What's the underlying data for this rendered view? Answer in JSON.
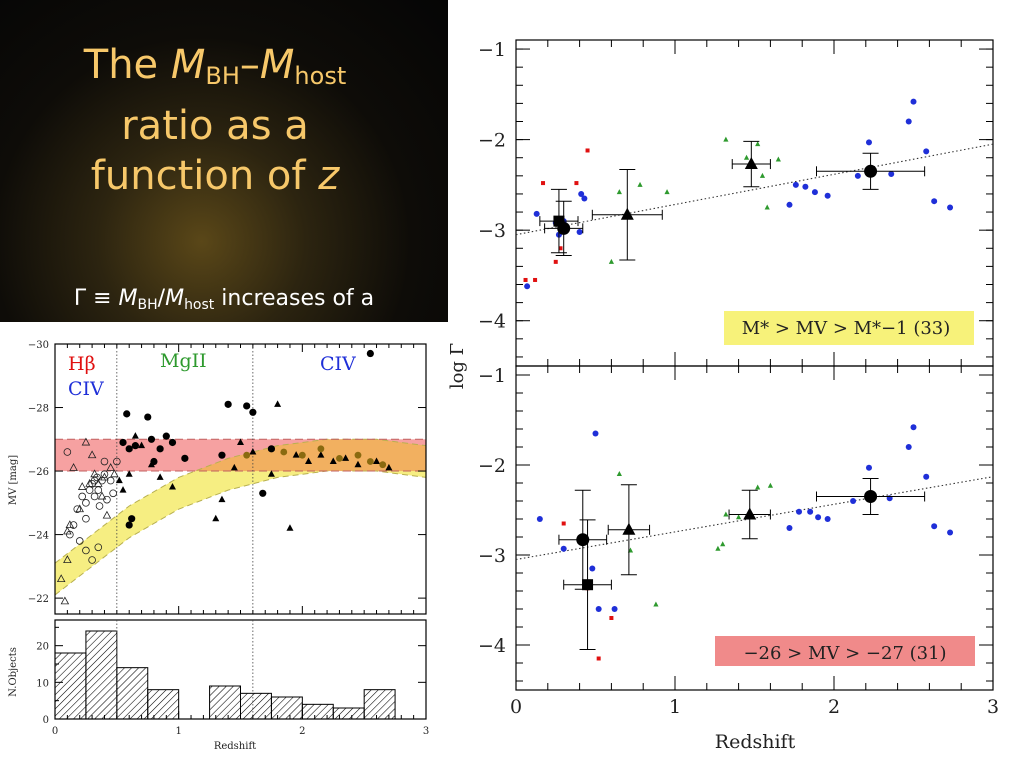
{
  "title_panel": {
    "title_line1_prefix": "The ",
    "title_m1": "M",
    "title_sub1": "BH",
    "title_dash": "–",
    "title_m2": "M",
    "title_sub2": "host",
    "title_line2": "ratio as a",
    "title_line3_prefix": "function of ",
    "title_z": "z",
    "sub_gamma": "Γ ≡ ",
    "sub_m1": "M",
    "sub_bh": "BH",
    "sub_slash": "/",
    "sub_m2": "M",
    "sub_host": "host",
    "sub_rest": " increases of a"
  },
  "colors": {
    "blue": "#1f2fd8",
    "green": "#2e9a2e",
    "red": "#e01010",
    "black": "#000000",
    "yellow_band": "#f6ee82",
    "red_band": "#f49090",
    "orange_overlap": "#f2b060",
    "label_yellow_bg": "#f7f27a",
    "label_red_bg": "#f08a8a"
  },
  "chart_data": [
    {
      "type": "scatter",
      "name": "top-right",
      "ylabel": "log Γ",
      "xlim": [
        0,
        3
      ],
      "ylim": [
        -4.5,
        -0.9
      ],
      "yticks": [
        "−1",
        "−2",
        "−3",
        "−4"
      ],
      "yticks_values": [
        -1,
        -2,
        -3,
        -4
      ],
      "box_label": "M* > MV > M*−1 (33)",
      "fit_line": [
        [
          0,
          -3.05
        ],
        [
          3,
          -2.05
        ]
      ],
      "points_blue": [
        [
          0.07,
          -3.62
        ],
        [
          0.13,
          -2.82
        ],
        [
          0.25,
          -2.92
        ],
        [
          0.27,
          -3.05
        ],
        [
          0.3,
          -2.9
        ],
        [
          0.4,
          -3.02
        ],
        [
          0.41,
          -2.6
        ],
        [
          0.43,
          -2.65
        ],
        [
          1.72,
          -2.72
        ],
        [
          1.76,
          -2.5
        ],
        [
          1.82,
          -2.52
        ],
        [
          1.88,
          -2.58
        ],
        [
          1.96,
          -2.62
        ],
        [
          2.15,
          -2.4
        ],
        [
          2.22,
          -2.03
        ],
        [
          2.36,
          -2.38
        ],
        [
          2.47,
          -1.8
        ],
        [
          2.5,
          -1.58
        ],
        [
          2.58,
          -2.13
        ],
        [
          2.63,
          -2.68
        ],
        [
          2.73,
          -2.75
        ]
      ],
      "points_green": [
        [
          0.6,
          -3.35
        ],
        [
          0.65,
          -2.58
        ],
        [
          0.78,
          -2.5
        ],
        [
          0.95,
          -2.58
        ],
        [
          1.32,
          -2.0
        ],
        [
          1.45,
          -2.2
        ],
        [
          1.52,
          -2.05
        ],
        [
          1.55,
          -2.4
        ],
        [
          1.58,
          -2.75
        ],
        [
          1.65,
          -2.22
        ]
      ],
      "points_red": [
        [
          0.06,
          -3.55
        ],
        [
          0.12,
          -3.55
        ],
        [
          0.17,
          -2.48
        ],
        [
          0.25,
          -3.35
        ],
        [
          0.28,
          -3.2
        ],
        [
          0.38,
          -2.48
        ],
        [
          0.45,
          -2.12
        ]
      ],
      "binned": [
        {
          "marker": "square",
          "x": 0.27,
          "y": -2.9,
          "xerr": 0.12,
          "yerr": 0.35
        },
        {
          "marker": "circle",
          "x": 0.3,
          "y": -2.98,
          "xerr": 0.12,
          "yerr": 0.3
        },
        {
          "marker": "triangle",
          "x": 0.7,
          "y": -2.83,
          "xerr": 0.22,
          "yerr": 0.5
        },
        {
          "marker": "triangle",
          "x": 1.48,
          "y": -2.27,
          "xerr": 0.12,
          "yerr": 0.25
        },
        {
          "marker": "circle",
          "x": 2.23,
          "y": -2.35,
          "xerr": 0.34,
          "yerr": 0.2
        }
      ]
    },
    {
      "type": "scatter",
      "name": "bottom-right",
      "xlabel": "Redshift",
      "xlim": [
        0,
        3
      ],
      "ylim": [
        -4.5,
        -0.9
      ],
      "xticks": [
        "0",
        "1",
        "2",
        "3"
      ],
      "xticks_values": [
        0,
        1,
        2,
        3
      ],
      "yticks": [
        "−1",
        "−2",
        "−3",
        "−4"
      ],
      "yticks_values": [
        -1,
        -2,
        -3,
        -4
      ],
      "box_label": "−26 > MV > −27 (31)",
      "fit_line": [
        [
          0,
          -3.05
        ],
        [
          3,
          -2.13
        ]
      ],
      "points_blue": [
        [
          0.15,
          -2.6
        ],
        [
          0.3,
          -2.93
        ],
        [
          0.48,
          -3.15
        ],
        [
          0.5,
          -1.65
        ],
        [
          0.52,
          -3.6
        ],
        [
          0.62,
          -3.6
        ],
        [
          1.72,
          -2.7
        ],
        [
          1.78,
          -2.52
        ],
        [
          1.85,
          -2.52
        ],
        [
          1.9,
          -2.58
        ],
        [
          1.96,
          -2.6
        ],
        [
          2.12,
          -2.4
        ],
        [
          2.22,
          -2.03
        ],
        [
          2.35,
          -2.37
        ],
        [
          2.47,
          -1.8
        ],
        [
          2.5,
          -1.58
        ],
        [
          2.58,
          -2.13
        ],
        [
          2.63,
          -2.68
        ],
        [
          2.73,
          -2.75
        ]
      ],
      "points_green": [
        [
          0.65,
          -2.1
        ],
        [
          0.72,
          -2.95
        ],
        [
          0.88,
          -3.55
        ],
        [
          1.27,
          -2.93
        ],
        [
          1.3,
          -2.88
        ],
        [
          1.32,
          -2.55
        ],
        [
          1.4,
          -2.58
        ],
        [
          1.52,
          -2.25
        ],
        [
          1.6,
          -2.23
        ]
      ],
      "points_red": [
        [
          0.3,
          -2.65
        ],
        [
          0.45,
          -3.37
        ],
        [
          0.52,
          -4.15
        ],
        [
          0.6,
          -3.7
        ]
      ],
      "binned": [
        {
          "marker": "circle",
          "x": 0.42,
          "y": -2.83,
          "xerr": 0.15,
          "yerr": 0.55
        },
        {
          "marker": "square",
          "x": 0.45,
          "y": -3.33,
          "xerr": 0.15,
          "yerr": 0.72
        },
        {
          "marker": "triangle",
          "x": 0.71,
          "y": -2.72,
          "xerr": 0.13,
          "yerr": 0.5
        },
        {
          "marker": "triangle",
          "x": 1.47,
          "y": -2.55,
          "xerr": 0.13,
          "yerr": 0.27
        },
        {
          "marker": "circle",
          "x": 2.23,
          "y": -2.35,
          "xerr": 0.34,
          "yerr": 0.2
        }
      ]
    },
    {
      "type": "scatter",
      "name": "left-magnitude",
      "ylabel": "MV [mag]",
      "xlim": [
        0,
        3
      ],
      "ylim": [
        -21.5,
        -30
      ],
      "yticks": [
        "−30",
        "−28",
        "−26",
        "−24",
        "−22"
      ],
      "yticks_values": [
        -30,
        -28,
        -26,
        -24,
        -22
      ],
      "region_labels": [
        "Hβ",
        "CIV",
        "MgII",
        "CIV"
      ],
      "region_boundaries": [
        0.5,
        1.6
      ],
      "red_band": [
        -26,
        -27
      ],
      "yellow_band_upper": [
        [
          0,
          -23.1
        ],
        [
          0.3,
          -24.0
        ],
        [
          0.6,
          -24.9
        ],
        [
          1.0,
          -25.8
        ],
        [
          1.4,
          -26.4
        ],
        [
          1.8,
          -26.8
        ],
        [
          2.2,
          -27.0
        ],
        [
          2.6,
          -27.0
        ],
        [
          3.0,
          -26.8
        ]
      ],
      "yellow_band_lower": [
        [
          0,
          -22.1
        ],
        [
          0.3,
          -23.0
        ],
        [
          0.6,
          -23.9
        ],
        [
          1.0,
          -24.8
        ],
        [
          1.4,
          -25.4
        ],
        [
          1.8,
          -25.8
        ],
        [
          2.2,
          -26.0
        ],
        [
          2.6,
          -26.0
        ],
        [
          3.0,
          -25.8
        ]
      ],
      "open_circles": [
        [
          0.1,
          -26.6
        ],
        [
          0.12,
          -24.0
        ],
        [
          0.15,
          -24.3
        ],
        [
          0.18,
          -24.8
        ],
        [
          0.22,
          -25.2
        ],
        [
          0.25,
          -25.0
        ],
        [
          0.25,
          -24.5
        ],
        [
          0.28,
          -25.4
        ],
        [
          0.3,
          -25.6
        ],
        [
          0.32,
          -25.7
        ],
        [
          0.32,
          -25.2
        ],
        [
          0.34,
          -25.8
        ],
        [
          0.35,
          -25.4
        ],
        [
          0.36,
          -24.9
        ],
        [
          0.38,
          -25.7
        ],
        [
          0.4,
          -26.3
        ],
        [
          0.4,
          -25.9
        ],
        [
          0.42,
          -25.1
        ],
        [
          0.45,
          -25.7
        ],
        [
          0.47,
          -25.3
        ],
        [
          0.5,
          -26.3
        ],
        [
          0.2,
          -23.8
        ],
        [
          0.25,
          -23.5
        ],
        [
          0.3,
          -23.2
        ],
        [
          0.35,
          -23.6
        ]
      ],
      "open_triangles": [
        [
          0.05,
          -22.6
        ],
        [
          0.08,
          -21.9
        ],
        [
          0.1,
          -23.2
        ],
        [
          0.1,
          -24.1
        ],
        [
          0.12,
          -24.3
        ],
        [
          0.15,
          -26.1
        ],
        [
          0.2,
          -24.8
        ],
        [
          0.22,
          -25.5
        ],
        [
          0.25,
          -26.9
        ],
        [
          0.28,
          -25.6
        ],
        [
          0.3,
          -26.5
        ],
        [
          0.32,
          -25.9
        ],
        [
          0.35,
          -25.6
        ],
        [
          0.38,
          -25.2
        ],
        [
          0.4,
          -25.8
        ],
        [
          0.42,
          -24.6
        ],
        [
          0.45,
          -26.1
        ],
        [
          0.48,
          -25.9
        ]
      ],
      "filled_circles": [
        [
          0.55,
          -26.9
        ],
        [
          0.58,
          -27.8
        ],
        [
          0.6,
          -26.7
        ],
        [
          0.62,
          -24.5
        ],
        [
          0.65,
          -26.8
        ],
        [
          0.75,
          -27.7
        ],
        [
          0.78,
          -27.0
        ],
        [
          0.8,
          -26.3
        ],
        [
          0.85,
          -26.7
        ],
        [
          0.9,
          -27.1
        ],
        [
          0.95,
          -26.9
        ],
        [
          1.05,
          -26.4
        ],
        [
          1.4,
          -28.1
        ],
        [
          1.55,
          -28.05
        ],
        [
          1.6,
          -27.85
        ],
        [
          1.68,
          -25.3
        ],
        [
          1.75,
          -26.7
        ],
        [
          2.55,
          -29.7
        ],
        [
          0.6,
          -24.3
        ],
        [
          1.35,
          -26.5
        ]
      ],
      "filled_triangles": [
        [
          0.52,
          -25.7
        ],
        [
          0.55,
          -25.4
        ],
        [
          0.6,
          -25.9
        ],
        [
          0.65,
          -27.1
        ],
        [
          0.7,
          -26.8
        ],
        [
          0.78,
          -26.2
        ],
        [
          0.85,
          -25.8
        ],
        [
          0.95,
          -25.5
        ],
        [
          1.3,
          -24.5
        ],
        [
          1.35,
          -25.1
        ],
        [
          1.45,
          -26.1
        ],
        [
          1.5,
          -26.9
        ],
        [
          1.6,
          -26.6
        ],
        [
          1.75,
          -25.9
        ],
        [
          1.8,
          -28.1
        ],
        [
          1.9,
          -24.2
        ],
        [
          1.95,
          -26.5
        ],
        [
          2.05,
          -26.3
        ],
        [
          2.15,
          -26.5
        ],
        [
          2.25,
          -26.3
        ],
        [
          2.35,
          -26.4
        ],
        [
          2.45,
          -26.2
        ],
        [
          2.6,
          -26.3
        ],
        [
          2.7,
          -26.1
        ]
      ],
      "band_circles": [
        [
          1.55,
          -26.5
        ],
        [
          1.85,
          -26.6
        ],
        [
          2.0,
          -26.5
        ],
        [
          2.15,
          -26.7
        ],
        [
          2.3,
          -26.4
        ],
        [
          2.45,
          -26.5
        ],
        [
          2.55,
          -26.3
        ],
        [
          2.65,
          -26.2
        ]
      ]
    },
    {
      "type": "bar",
      "name": "left-histogram",
      "xlabel": "Redshift",
      "ylabel": "N.Objects",
      "xlim": [
        0,
        3
      ],
      "ylim": [
        0,
        27
      ],
      "xticks": [
        "0",
        "1",
        "2",
        "3"
      ],
      "xticks_values": [
        0,
        1,
        2,
        3
      ],
      "yticks": [
        "0",
        "10",
        "20"
      ],
      "yticks_values": [
        0,
        10,
        20
      ],
      "bin_edges": [
        0,
        0.25,
        0.5,
        0.75,
        1.0,
        1.25,
        1.5,
        1.75,
        2.0,
        2.25,
        2.5,
        2.75
      ],
      "values": [
        18,
        24,
        14,
        8,
        0,
        9,
        7,
        6,
        4,
        3,
        8
      ]
    }
  ]
}
